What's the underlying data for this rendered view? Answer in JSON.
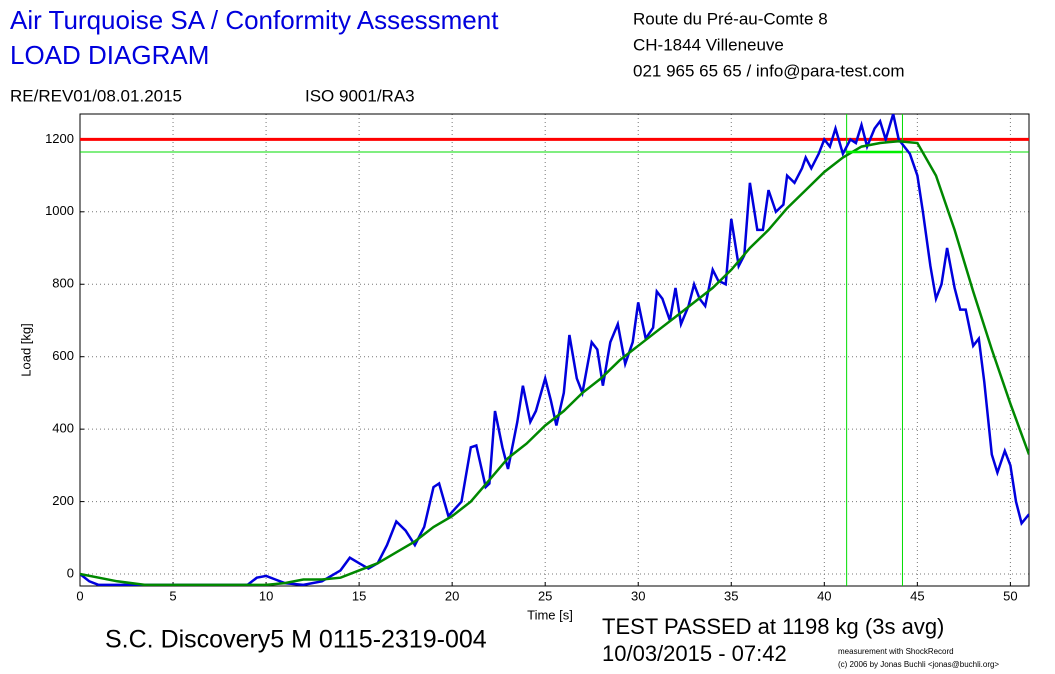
{
  "chart_data": {
    "type": "line",
    "title": [
      "Air Turquoise SA / Conformity Assessment",
      "LOAD DIAGRAM"
    ],
    "address": [
      "Route du Pré-au-Comte 8",
      "CH-1844 Villeneuve",
      "021 965 65 65 / info@para-test.com"
    ],
    "reference": "RE/REV01/08.01.2015",
    "standard": "ISO 9001/RA3",
    "x_label": "Time [s]",
    "y_label": "Load [kg]",
    "device": "S.C. Discovery5 M 0115-2319-004",
    "result": "TEST PASSED at 1198 kg (3s avg)",
    "date": "10/03/2015 - 07:42",
    "credit": [
      "measurement with ShockRecord",
      "(c) 2006 by Jonas Buchli <jonas@buchli.org>"
    ],
    "xlim": [
      0,
      51
    ],
    "ylim": [
      -33,
      1270
    ],
    "xticks": [
      0,
      5,
      10,
      15,
      20,
      25,
      30,
      35,
      40,
      45,
      50
    ],
    "yticks": [
      0,
      200,
      400,
      600,
      800,
      1000,
      1200
    ],
    "grid": true,
    "hlines": [
      {
        "value": 1200,
        "color": "#ff0000"
      },
      {
        "value": 1165,
        "color": "#00dd00"
      }
    ],
    "vlines": [
      {
        "value": 41.2,
        "color": "#00dd00"
      },
      {
        "value": 44.2,
        "color": "#00dd00"
      }
    ],
    "series": [
      {
        "color": "#0000dd",
        "x": [
          0,
          0.5,
          1,
          2,
          3,
          4,
          5,
          6,
          7,
          8,
          9,
          9.5,
          10,
          10.5,
          11,
          12,
          13,
          14,
          14.5,
          15,
          15.5,
          16,
          16.5,
          17,
          17.5,
          18,
          18.5,
          19,
          19.3,
          19.8,
          20.5,
          21,
          21.3,
          21.8,
          22,
          22.3,
          22.7,
          23,
          23.5,
          23.8,
          24.2,
          24.5,
          25,
          25.3,
          25.6,
          26,
          26.3,
          26.7,
          27,
          27.5,
          27.8,
          28.1,
          28.5,
          28.9,
          29.3,
          29.7,
          30,
          30.4,
          30.8,
          31,
          31.3,
          31.7,
          32,
          32.3,
          32.7,
          33,
          33.3,
          33.6,
          34,
          34.3,
          34.7,
          35,
          35.4,
          35.7,
          36,
          36.4,
          36.7,
          37,
          37.4,
          37.8,
          38,
          38.4,
          38.8,
          39,
          39.3,
          39.7,
          40,
          40.3,
          40.6,
          41,
          41.4,
          41.7,
          42,
          42.3,
          42.7,
          43,
          43.3,
          43.7,
          44,
          44.3,
          44.6,
          45,
          45.3,
          45.7,
          46,
          46.3,
          46.6,
          47,
          47.3,
          47.6,
          48,
          48.3,
          48.6,
          49,
          49.3,
          49.7,
          50,
          50.3,
          50.6,
          51
        ],
        "values": [
          0,
          -20,
          -30,
          -30,
          -30,
          -30,
          -30,
          -30,
          -30,
          -30,
          -30,
          -10,
          -5,
          -15,
          -25,
          -30,
          -20,
          10,
          45,
          30,
          15,
          30,
          80,
          145,
          120,
          80,
          130,
          240,
          250,
          160,
          200,
          350,
          355,
          240,
          250,
          450,
          350,
          290,
          420,
          520,
          420,
          450,
          540,
          480,
          410,
          500,
          660,
          540,
          500,
          640,
          620,
          520,
          640,
          690,
          580,
          640,
          750,
          650,
          680,
          780,
          760,
          700,
          790,
          690,
          740,
          800,
          760,
          740,
          840,
          810,
          800,
          980,
          850,
          880,
          1080,
          950,
          950,
          1060,
          1000,
          1020,
          1100,
          1080,
          1120,
          1150,
          1120,
          1160,
          1200,
          1180,
          1230,
          1160,
          1200,
          1190,
          1240,
          1180,
          1230,
          1250,
          1200,
          1270,
          1200,
          1180,
          1160,
          1100,
          1000,
          850,
          760,
          800,
          900,
          790,
          730,
          730,
          630,
          650,
          530,
          330,
          280,
          340,
          300,
          200,
          140,
          165
        ]
      },
      {
        "color": "#008800",
        "x": [
          0,
          2,
          3.5,
          10,
          11,
          12,
          13,
          14,
          15,
          16,
          17,
          18,
          19,
          20,
          21,
          22,
          23,
          24,
          25,
          26,
          27,
          28,
          29,
          30,
          31,
          32,
          33,
          34,
          35,
          36,
          37,
          38,
          39,
          40,
          41,
          42,
          43,
          44,
          45,
          46,
          47,
          48,
          49,
          50,
          51
        ],
        "values": [
          0,
          -20,
          -30,
          -30,
          -25,
          -15,
          -15,
          -10,
          10,
          30,
          60,
          90,
          130,
          160,
          200,
          260,
          320,
          360,
          410,
          450,
          500,
          540,
          590,
          630,
          670,
          710,
          750,
          790,
          840,
          900,
          950,
          1010,
          1060,
          1110,
          1150,
          1180,
          1190,
          1195,
          1190,
          1100,
          950,
          780,
          620,
          470,
          330
        ]
      },
      {
        "color": "#00ee00",
        "x": [
          41.2,
          44.2
        ],
        "values": [
          1165,
          1165
        ]
      }
    ]
  }
}
